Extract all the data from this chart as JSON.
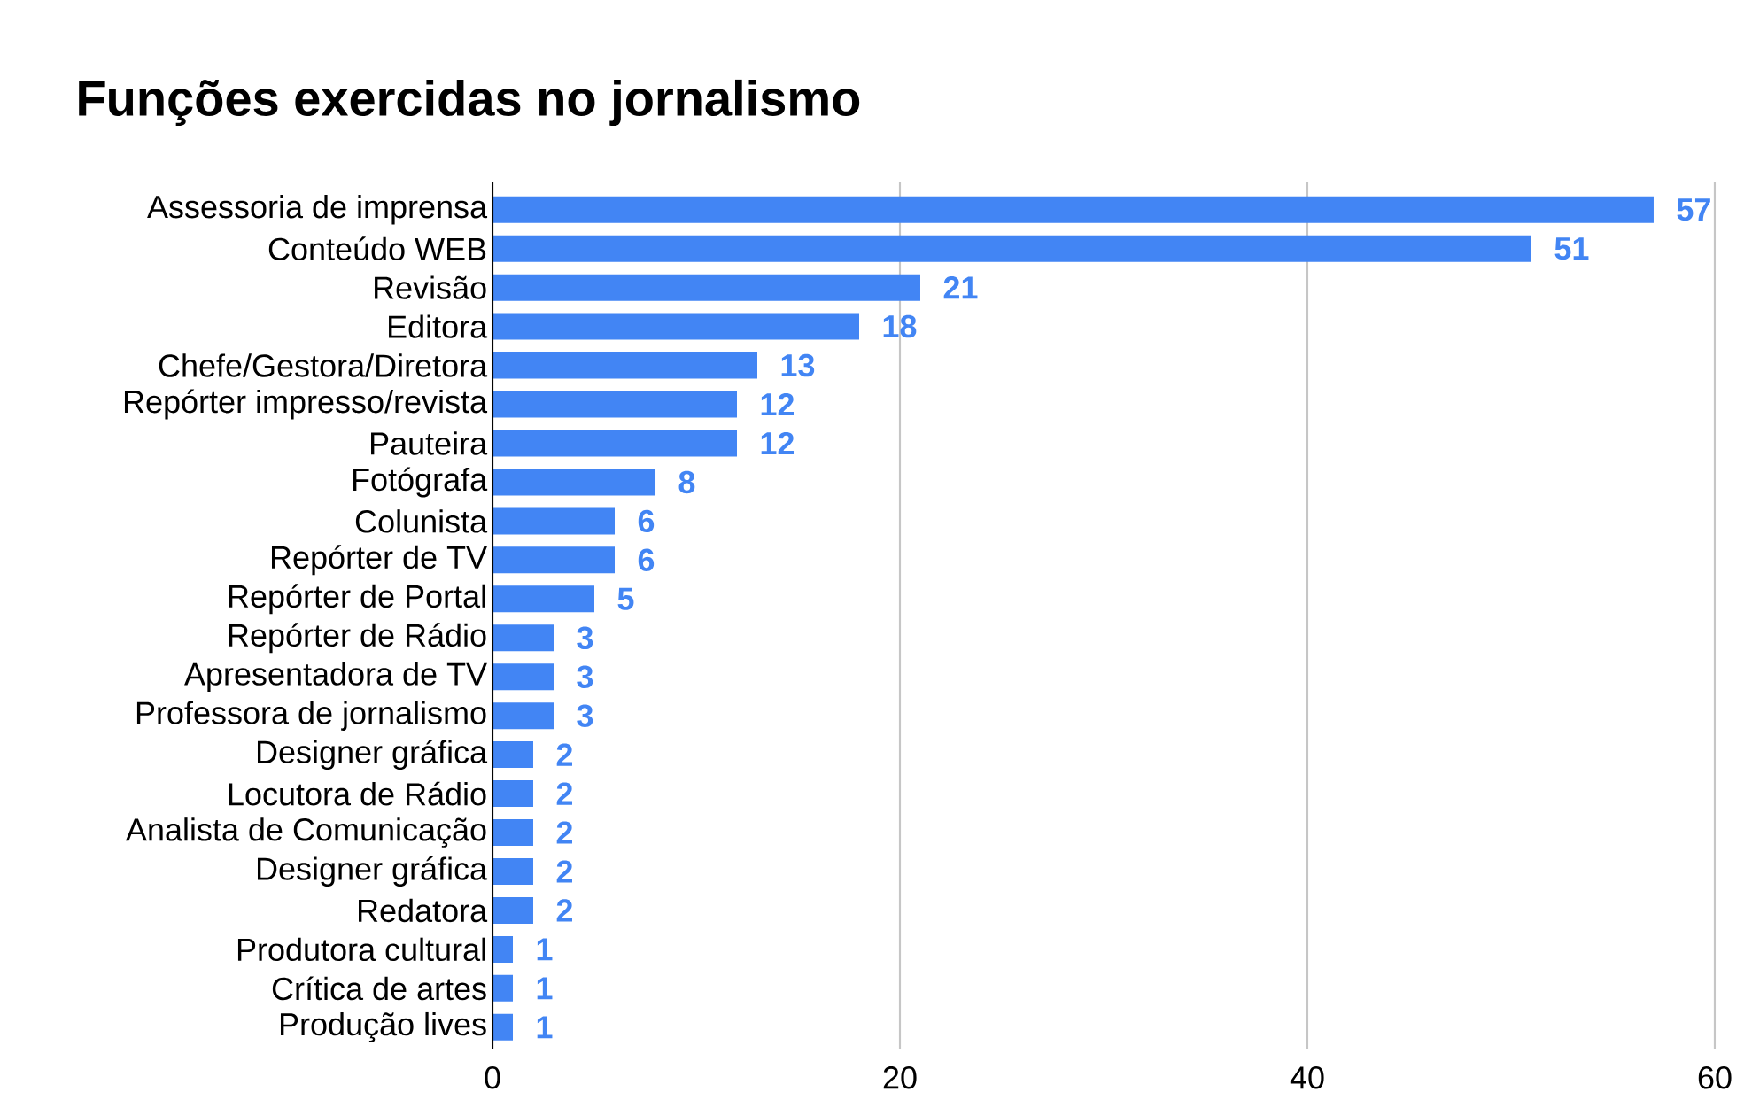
{
  "chart_data": {
    "type": "bar",
    "orientation": "horizontal",
    "title": "Funções exercidas no jornalismo",
    "categories": [
      "Assessoria de imprensa",
      "Conteúdo WEB",
      "Revisão",
      "Editora",
      "Chefe/Gestora/Diretora",
      "Repórter impresso/revista",
      "Pauteira",
      "Fotógrafa",
      "Colunista",
      "Repórter de TV",
      "Repórter de Portal",
      "Repórter de Rádio",
      "Apresentadora de TV",
      "Professora de jornalismo",
      "Designer gráfica",
      "Locutora de Rádio",
      "Analista de Comunicação",
      "Designer gráfica",
      "Redatora",
      "Produtora cultural",
      "Crítica de artes",
      "Produção lives"
    ],
    "values": [
      57,
      51,
      21,
      18,
      13,
      12,
      12,
      8,
      6,
      6,
      5,
      3,
      3,
      3,
      2,
      2,
      2,
      2,
      2,
      1,
      1,
      1
    ],
    "color": "#4285f4",
    "data_labels": true,
    "xlim": [
      0,
      60
    ],
    "xticks": [
      0,
      20,
      40,
      60
    ],
    "grid": "x"
  }
}
